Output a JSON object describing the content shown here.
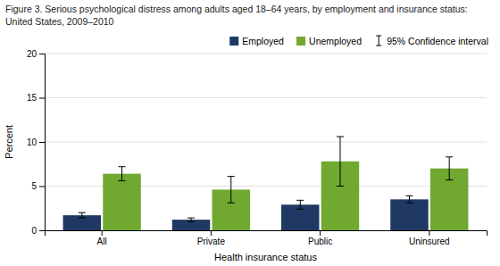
{
  "chart_data": {
    "type": "bar",
    "title": "Figure 3. Serious psychological distress among adults aged 18–64 years, by employment and insurance status:",
    "subtitle": "United States, 2009–2010",
    "categories": [
      "All",
      "Private",
      "Public",
      "Uninsured"
    ],
    "series": [
      {
        "name": "Employed",
        "color": "#1f3864",
        "values": [
          1.7,
          1.2,
          2.9,
          3.5
        ],
        "errors": [
          0.3,
          0.2,
          0.5,
          0.4
        ]
      },
      {
        "name": "Unemployed",
        "color": "#70a830",
        "values": [
          6.4,
          4.6,
          7.8,
          7.0
        ],
        "errors": [
          0.8,
          1.5,
          2.8,
          1.3
        ]
      }
    ],
    "error_bar_label": "95% Confidence interval",
    "xlabel": "Health insurance status",
    "ylabel": "Percent",
    "ylim": [
      0,
      20
    ],
    "yticks": [
      0,
      5,
      10,
      15,
      20
    ],
    "grid": true,
    "legend": "upper right"
  }
}
